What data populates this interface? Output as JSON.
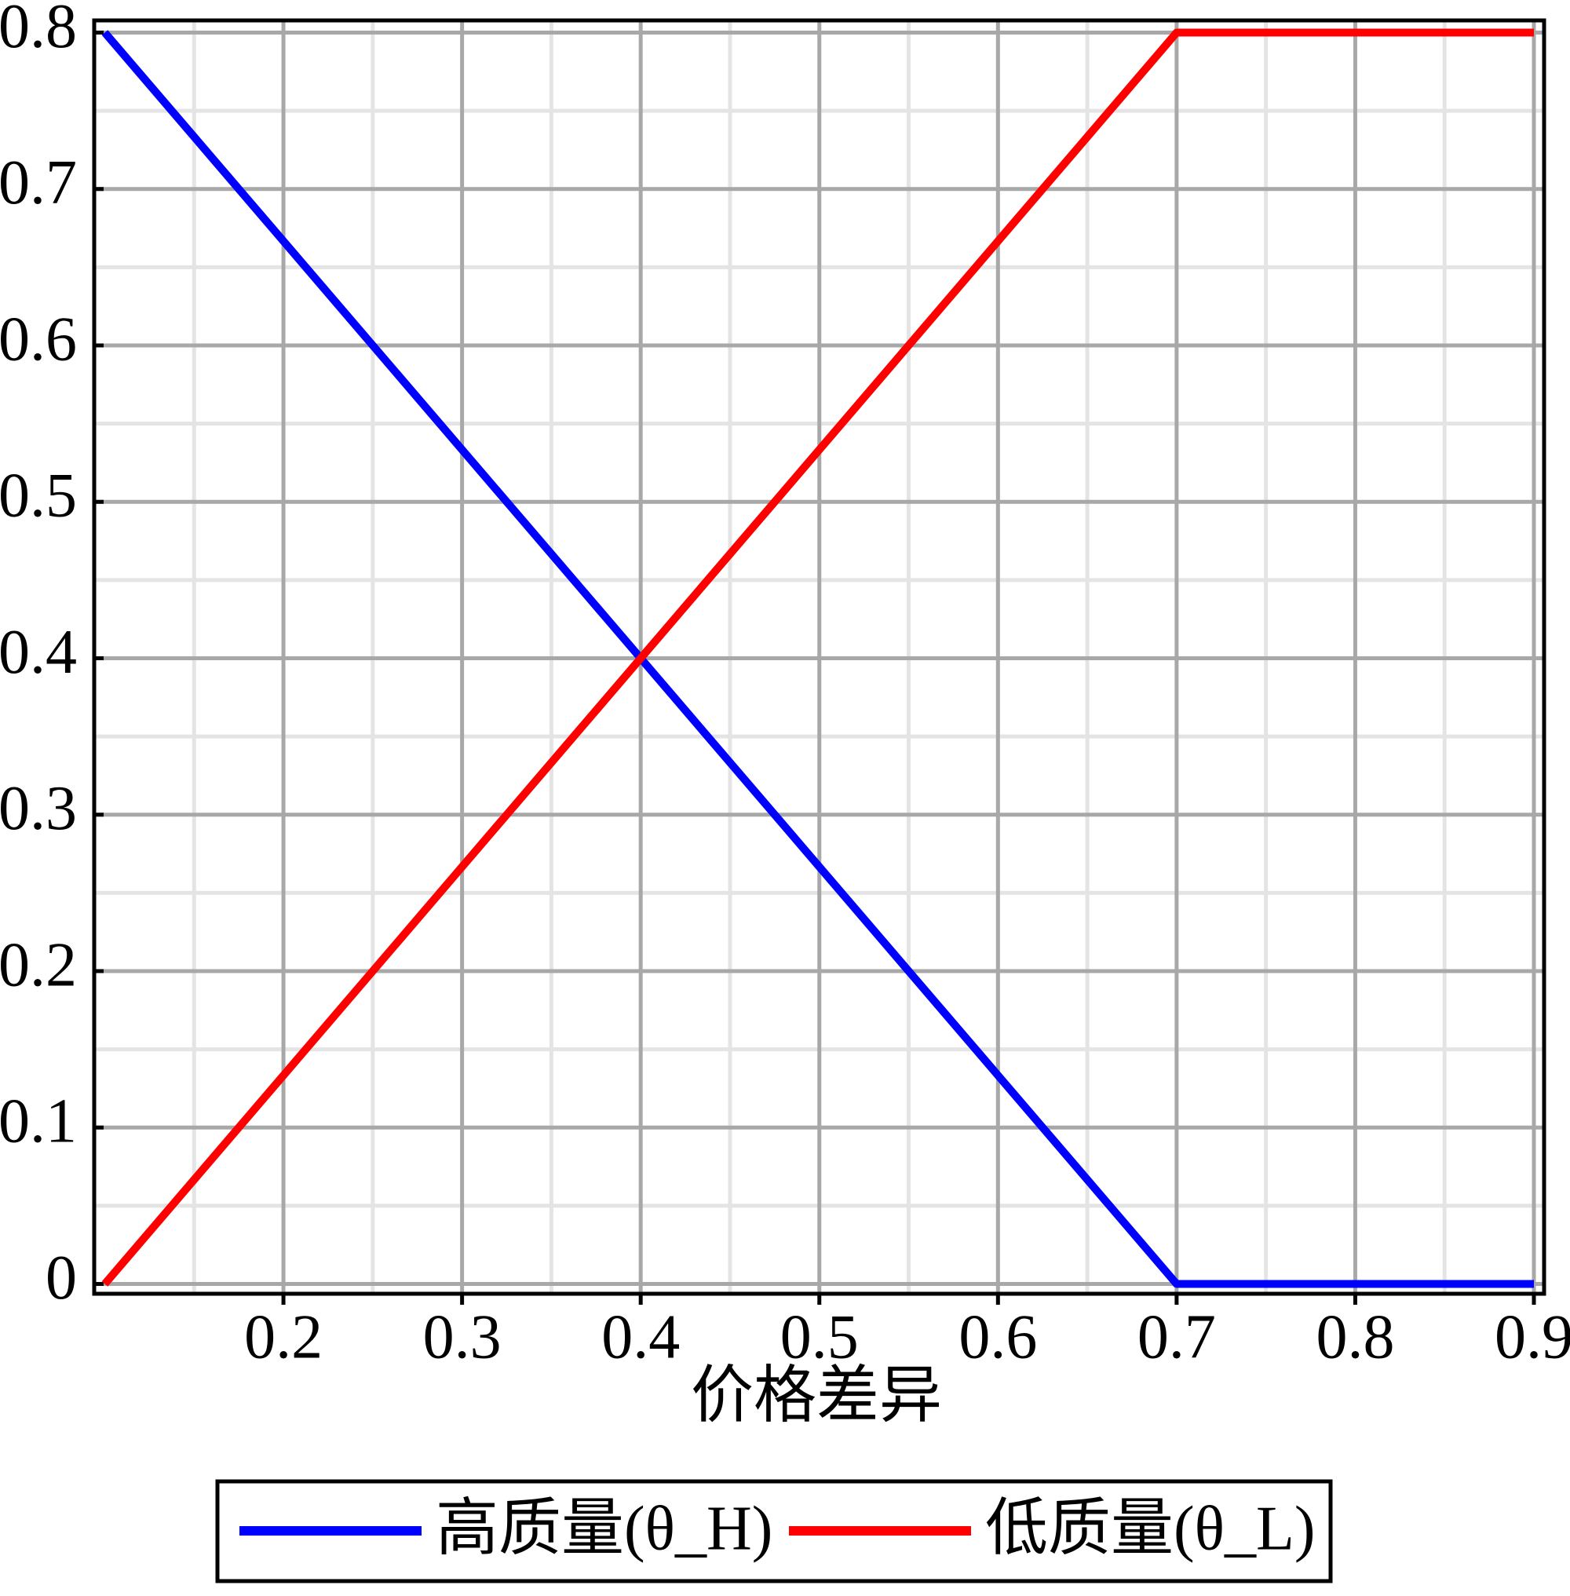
{
  "chart_data": {
    "type": "line",
    "x_label": "价格差异",
    "x": [
      0.1,
      0.4,
      0.7,
      0.9
    ],
    "series": [
      {
        "name": "高质量(θ_H)",
        "color": "#0000ff",
        "values": [
          0.8,
          0.4,
          0,
          0
        ]
      },
      {
        "name": "低质量(θ_L)",
        "color": "#ff0000",
        "values": [
          0,
          0.4,
          0.8,
          0.8
        ]
      }
    ],
    "xlim": [
      0.1,
      0.9
    ],
    "xticks": [
      0.2,
      0.3,
      0.4,
      0.5,
      0.6,
      0.7,
      0.8,
      0.9
    ],
    "ylim": [
      0,
      0.8
    ],
    "yticks": [
      0,
      0.1,
      0.2,
      0.3,
      0.4,
      0.5,
      0.6,
      0.7,
      0.8
    ],
    "grid": true,
    "legend": "bottom"
  }
}
